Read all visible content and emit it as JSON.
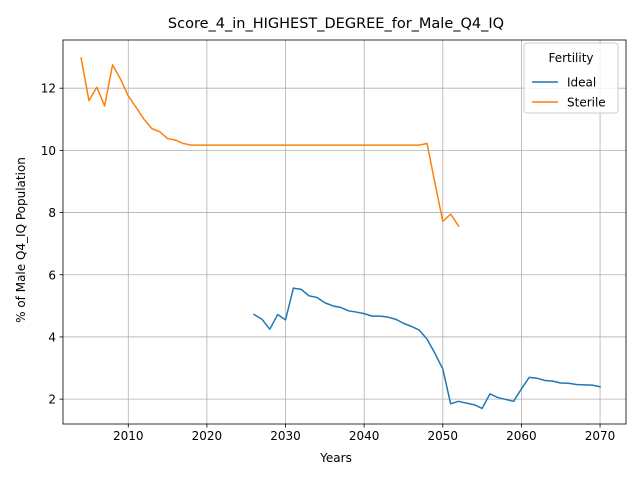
{
  "chart_data": {
    "type": "line",
    "title": "Score_4_in_HIGHEST_DEGREE_for_Male_Q4_IQ",
    "xlabel": "Years",
    "ylabel": "% of Male Q4_IQ Population",
    "xlim": [
      2001.7,
      2073.3
    ],
    "ylim": [
      1.2,
      13.55
    ],
    "x_ticks": [
      2010,
      2020,
      2030,
      2040,
      2050,
      2060,
      2070
    ],
    "y_ticks": [
      2,
      4,
      6,
      8,
      10,
      12
    ],
    "grid": true,
    "legend": {
      "title": "Fertility",
      "placement": "top-right"
    },
    "series": [
      {
        "name": "Ideal",
        "color": "#1f77b4",
        "points": [
          [
            2026,
            4.72
          ],
          [
            2027,
            4.57
          ],
          [
            2028,
            4.25
          ],
          [
            2029,
            4.72
          ],
          [
            2030,
            4.55
          ],
          [
            2031,
            5.57
          ],
          [
            2032,
            5.53
          ],
          [
            2033,
            5.32
          ],
          [
            2034,
            5.27
          ],
          [
            2035,
            5.1
          ],
          [
            2036,
            5.0
          ],
          [
            2037,
            4.95
          ],
          [
            2038,
            4.84
          ],
          [
            2039,
            4.8
          ],
          [
            2040,
            4.75
          ],
          [
            2041,
            4.67
          ],
          [
            2042,
            4.67
          ],
          [
            2043,
            4.64
          ],
          [
            2044,
            4.57
          ],
          [
            2045,
            4.44
          ],
          [
            2046,
            4.34
          ],
          [
            2047,
            4.22
          ],
          [
            2048,
            3.93
          ],
          [
            2049,
            3.47
          ],
          [
            2050,
            2.97
          ],
          [
            2051,
            1.85
          ],
          [
            2052,
            1.93
          ],
          [
            2053,
            1.87
          ],
          [
            2054,
            1.82
          ],
          [
            2055,
            1.7
          ],
          [
            2056,
            2.17
          ],
          [
            2057,
            2.05
          ],
          [
            2058,
            1.99
          ],
          [
            2059,
            1.93
          ],
          [
            2060,
            2.33
          ],
          [
            2061,
            2.7
          ],
          [
            2062,
            2.67
          ],
          [
            2063,
            2.6
          ],
          [
            2064,
            2.58
          ],
          [
            2065,
            2.52
          ],
          [
            2066,
            2.51
          ],
          [
            2067,
            2.47
          ],
          [
            2068,
            2.46
          ],
          [
            2069,
            2.45
          ],
          [
            2070,
            2.4
          ]
        ]
      },
      {
        "name": "Sterile",
        "color": "#ff7f0e",
        "points": [
          [
            2004,
            12.97
          ],
          [
            2005,
            11.6
          ],
          [
            2006,
            12.03
          ],
          [
            2007,
            11.43
          ],
          [
            2008,
            12.75
          ],
          [
            2009,
            12.3
          ],
          [
            2010,
            11.75
          ],
          [
            2011,
            11.38
          ],
          [
            2012,
            11.0
          ],
          [
            2013,
            10.7
          ],
          [
            2014,
            10.6
          ],
          [
            2015,
            10.38
          ],
          [
            2016,
            10.33
          ],
          [
            2017,
            10.22
          ],
          [
            2018,
            10.17
          ],
          [
            2019,
            10.17
          ],
          [
            2020,
            10.17
          ],
          [
            2021,
            10.17
          ],
          [
            2022,
            10.17
          ],
          [
            2023,
            10.17
          ],
          [
            2024,
            10.17
          ],
          [
            2025,
            10.17
          ],
          [
            2026,
            10.17
          ],
          [
            2027,
            10.17
          ],
          [
            2028,
            10.17
          ],
          [
            2029,
            10.17
          ],
          [
            2030,
            10.17
          ],
          [
            2031,
            10.17
          ],
          [
            2032,
            10.17
          ],
          [
            2033,
            10.17
          ],
          [
            2034,
            10.17
          ],
          [
            2035,
            10.17
          ],
          [
            2036,
            10.17
          ],
          [
            2037,
            10.17
          ],
          [
            2038,
            10.17
          ],
          [
            2039,
            10.17
          ],
          [
            2040,
            10.17
          ],
          [
            2041,
            10.17
          ],
          [
            2042,
            10.17
          ],
          [
            2043,
            10.17
          ],
          [
            2044,
            10.17
          ],
          [
            2045,
            10.17
          ],
          [
            2046,
            10.17
          ],
          [
            2047,
            10.17
          ],
          [
            2048,
            10.22
          ],
          [
            2049,
            8.95
          ],
          [
            2050,
            7.72
          ],
          [
            2051,
            7.95
          ],
          [
            2052,
            7.57
          ]
        ]
      }
    ]
  }
}
